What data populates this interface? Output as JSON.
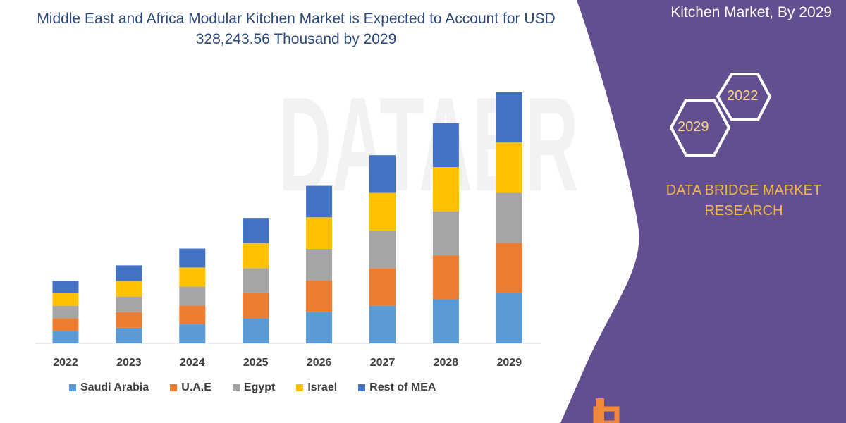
{
  "title": "Middle East and Africa Modular Kitchen Market is Expected to Account for USD 328,243.56 Thousand by 2029",
  "side_panel": {
    "title": "Kitchen Market, By 2029",
    "hex_years": [
      "2022",
      "2029"
    ],
    "brand": "DATA BRIDGE MARKET RESEARCH",
    "color": "#634f8f"
  },
  "watermark": "DATABR",
  "chart_data": {
    "type": "bar",
    "stacked": true,
    "title": "Middle East and Africa Modular Kitchen Market is Expected to Account for USD 328,243.56 Thousand by 2029",
    "categories": [
      "2022",
      "2023",
      "2024",
      "2025",
      "2026",
      "2027",
      "2028",
      "2029"
    ],
    "series": [
      {
        "name": "Saudi Arabia",
        "color": "#5b9bd5",
        "values": [
          16400,
          20400,
          24800,
          32800,
          41200,
          49200,
          57600,
          65649
        ]
      },
      {
        "name": "U.A.E",
        "color": "#ed7d31",
        "values": [
          16400,
          20400,
          24800,
          32800,
          41200,
          49200,
          57600,
          65649
        ]
      },
      {
        "name": "Egypt",
        "color": "#a5a5a5",
        "values": [
          16400,
          20400,
          24800,
          32800,
          41200,
          49200,
          57600,
          65649
        ]
      },
      {
        "name": "Israel",
        "color": "#ffc000",
        "values": [
          16400,
          20400,
          24800,
          32800,
          41200,
          49200,
          57600,
          65649
        ]
      },
      {
        "name": "Rest of MEA",
        "color": "#4472c4",
        "values": [
          16400,
          20400,
          24800,
          32800,
          41200,
          49200,
          57600,
          65648
        ]
      }
    ],
    "xlabel": "",
    "ylabel": "",
    "ylim": [
      0,
      328244
    ],
    "grid": false,
    "legend": "bottom"
  }
}
